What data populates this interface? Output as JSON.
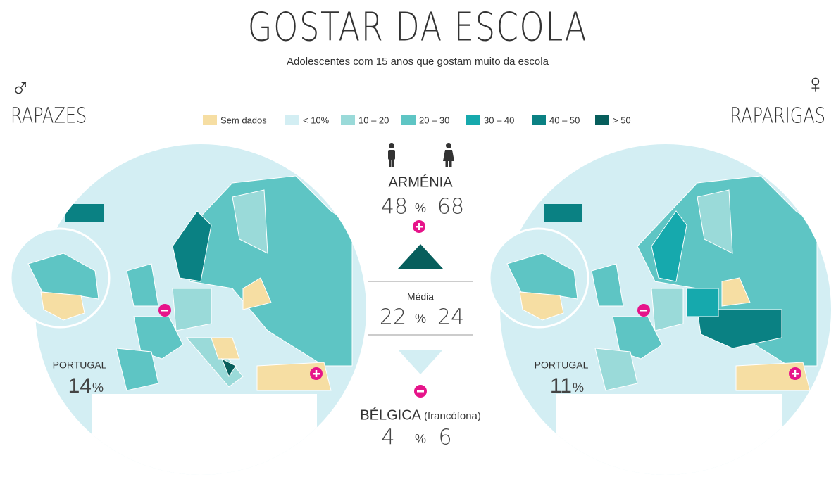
{
  "header": {
    "title": "GOSTAR DA ESCOLA",
    "subtitle": "Adolescentes com 15 anos que gostam muito da escola"
  },
  "legend": [
    {
      "label": "Sem dados",
      "color": "#f6dea3"
    },
    {
      "label": "< 10%",
      "color": "#d3eef3"
    },
    {
      "label": "10 – 20",
      "color": "#9adad9"
    },
    {
      "label": "20 – 30",
      "color": "#5ec5c4"
    },
    {
      "label": "30 – 40",
      "color": "#16a9ad"
    },
    {
      "label": "40 – 50",
      "color": "#0a8183"
    },
    {
      "label": "> 50",
      "color": "#075e5c"
    }
  ],
  "left": {
    "symbol": "♂",
    "label": "RAPAZES",
    "country": "PORTUGAL",
    "value": 14
  },
  "right": {
    "symbol": "♀",
    "label": "RAPARIGAS",
    "country": "PORTUGAL",
    "value": 11
  },
  "unit": "%",
  "center": {
    "highest": {
      "country": "ARMÉNIA",
      "boys": 48,
      "girls": 68
    },
    "average": {
      "label": "Média",
      "boys": 22,
      "girls": 24
    },
    "lowest": {
      "country": "BÉLGICA",
      "note": "(francófona)",
      "boys": 4,
      "girls": 6
    }
  }
}
